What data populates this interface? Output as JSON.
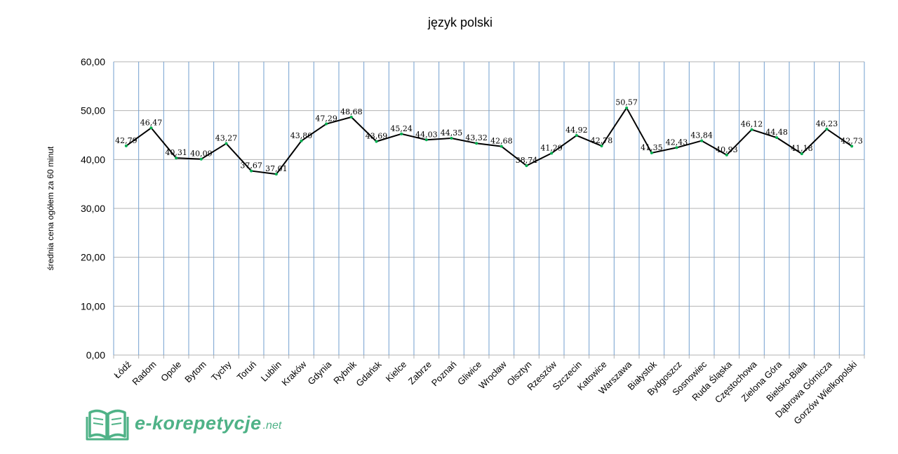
{
  "chart_data": {
    "type": "line",
    "title": "język polski",
    "ylabel": "średnia cena ogółem za 60 minut",
    "xlabel": "",
    "ylim": [
      0,
      60
    ],
    "yticks": [
      "0,00",
      "10,00",
      "20,00",
      "30,00",
      "40,00",
      "50,00",
      "60,00"
    ],
    "ytick_values": [
      0,
      10,
      20,
      30,
      40,
      50,
      60
    ],
    "grid": true,
    "categories": [
      "Łódź",
      "Radom",
      "Opole",
      "Bytom",
      "Tychy",
      "Toruń",
      "Lublin",
      "Kraków",
      "Gdynia",
      "Rybnik",
      "Gdańsk",
      "Kielce",
      "Zabrze",
      "Poznań",
      "Gliwice",
      "Wrocław",
      "Olsztyn",
      "Rzeszów",
      "Szczecin",
      "Katowice",
      "Warszawa",
      "Białystok",
      "Bydgoszcz",
      "Sosnowiec",
      "Ruda Śląska",
      "Częstochowa",
      "Zielona Góra",
      "Bielsko-Biała",
      "Dąbrowa Górnicza",
      "Gorzów Wielkopolski"
    ],
    "values": [
      42.79,
      46.47,
      40.31,
      40.09,
      43.27,
      37.67,
      37.01,
      43.8,
      47.29,
      48.68,
      43.69,
      45.24,
      44.03,
      44.35,
      43.32,
      42.68,
      38.74,
      41.29,
      44.92,
      42.78,
      50.57,
      41.35,
      42.43,
      43.84,
      40.93,
      46.12,
      44.48,
      41.18,
      46.23,
      42.73
    ],
    "value_labels": [
      "42,79",
      "46,47",
      "40,31",
      "40,09",
      "43,27",
      "37,67",
      "37,01",
      "43,80",
      "47,29",
      "48,68",
      "43,69",
      "45,24",
      "44,03",
      "44,35",
      "43,32",
      "42,68",
      "38,74",
      "41,29",
      "44,92",
      "42,78",
      "50,57",
      "41,35",
      "42,43",
      "43,84",
      "40,93",
      "46,12",
      "44,48",
      "41,18",
      "46,23",
      "42,73"
    ],
    "colors": {
      "line": "#000000",
      "marker": "#00b050",
      "grid_h": "#b3b3b3",
      "grid_v": "#729fcf"
    }
  },
  "logo": {
    "text": "e-korepetycje",
    "suffix": ".net",
    "color": "#4fb287"
  }
}
